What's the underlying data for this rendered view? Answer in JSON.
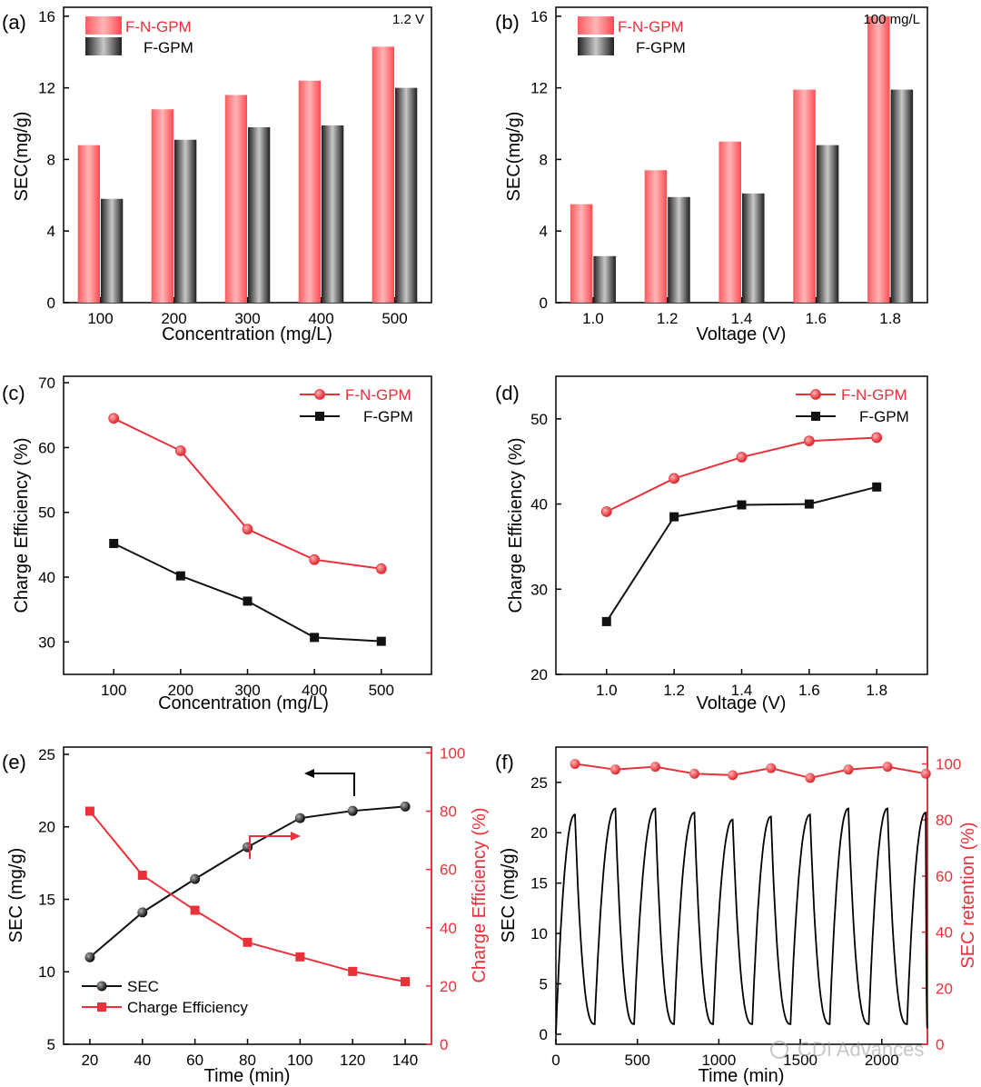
{
  "colors": {
    "red": "#e8313a",
    "red_bar": "#f25a5f",
    "black": "#111111",
    "gray_bar": "#5a5a5a"
  },
  "watermark": "CDI Advances",
  "chart_data": [
    {
      "id": "a",
      "type": "bar",
      "panel_label": "(a)",
      "annotation": "1.2 V",
      "xlabel": "Concentration (mg/L)",
      "ylabel": "SEC(mg/g)",
      "categories": [
        "100",
        "200",
        "300",
        "400",
        "500"
      ],
      "ylim": [
        0,
        16.5
      ],
      "yticks": [
        0,
        4,
        8,
        12,
        16
      ],
      "series": [
        {
          "name": "F-N-GPM",
          "values": [
            8.8,
            10.8,
            11.6,
            12.4,
            14.3
          ]
        },
        {
          "name": "F-GPM",
          "values": [
            5.8,
            9.1,
            9.8,
            9.9,
            12.0
          ]
        }
      ]
    },
    {
      "id": "b",
      "type": "bar",
      "panel_label": "(b)",
      "annotation": "100 mg/L",
      "xlabel": "Voltage (V)",
      "ylabel": "SEC(mg/g)",
      "categories": [
        "1.0",
        "1.2",
        "1.4",
        "1.6",
        "1.8"
      ],
      "ylim": [
        0,
        16.5
      ],
      "yticks": [
        0,
        4,
        8,
        12,
        16
      ],
      "series": [
        {
          "name": "F-N-GPM",
          "values": [
            5.5,
            7.4,
            9.0,
            11.9,
            16.0
          ]
        },
        {
          "name": "F-GPM",
          "values": [
            2.6,
            5.9,
            6.1,
            8.8,
            11.9
          ]
        }
      ]
    },
    {
      "id": "c",
      "type": "line",
      "panel_label": "(c)",
      "xlabel": "Concentration (mg/L)",
      "ylabel": "Charge Efficiency (%)",
      "x": [
        100,
        200,
        300,
        400,
        500
      ],
      "xlim": [
        25,
        575
      ],
      "xticks": [
        100,
        200,
        300,
        400,
        500
      ],
      "ylim": [
        25,
        71
      ],
      "yticks": [
        30,
        40,
        50,
        60,
        70
      ],
      "series": [
        {
          "name": "F-N-GPM",
          "marker": "circle",
          "values": [
            64.5,
            59.5,
            47.4,
            42.7,
            41.3
          ]
        },
        {
          "name": "F-GPM",
          "marker": "square",
          "values": [
            45.2,
            40.2,
            36.3,
            30.7,
            30.1
          ]
        }
      ]
    },
    {
      "id": "d",
      "type": "line",
      "panel_label": "(d)",
      "xlabel": "Voltage (V)",
      "ylabel": "Charge Efficiency (%)",
      "x": [
        1.0,
        1.2,
        1.4,
        1.6,
        1.8
      ],
      "xlim": [
        0.85,
        1.95
      ],
      "xticks": [
        1.0,
        1.2,
        1.4,
        1.6,
        1.8
      ],
      "xtick_labels": [
        "1.0",
        "1.2",
        "1.4",
        "1.6",
        "1.8"
      ],
      "ylim": [
        20,
        55
      ],
      "yticks": [
        20,
        30,
        40,
        50
      ],
      "series": [
        {
          "name": "F-N-GPM",
          "marker": "circle",
          "values": [
            39.1,
            43.0,
            45.5,
            47.4,
            47.8
          ]
        },
        {
          "name": "F-GPM",
          "marker": "square",
          "values": [
            26.2,
            38.5,
            39.9,
            40.0,
            42.0
          ]
        }
      ]
    },
    {
      "id": "e",
      "type": "line",
      "panel_label": "(e)",
      "xlabel": "Time (min)",
      "ylabel": "SEC (mg/g)",
      "y2label": "Charge Efficiency (%)",
      "x": [
        20,
        40,
        60,
        80,
        100,
        120,
        140
      ],
      "xlim": [
        10,
        150
      ],
      "xticks": [
        20,
        40,
        60,
        80,
        100,
        120,
        140
      ],
      "ylim": [
        5,
        25.5
      ],
      "yticks": [
        5,
        10,
        15,
        20,
        25
      ],
      "y2lim": [
        0,
        102
      ],
      "y2ticks": [
        0,
        20,
        40,
        60,
        80,
        100
      ],
      "series": [
        {
          "name": "SEC",
          "marker": "circle",
          "axis": "left",
          "values": [
            11.0,
            14.1,
            16.4,
            18.6,
            20.6,
            21.1,
            21.4
          ]
        },
        {
          "name": "Charge Efficiency",
          "marker": "square",
          "axis": "right",
          "values": [
            80,
            58,
            46,
            35,
            30,
            25,
            21.5
          ]
        }
      ]
    },
    {
      "id": "f",
      "type": "line",
      "panel_label": "(f)",
      "xlabel": "Time (min)",
      "ylabel": "SEC (mg/g)",
      "y2label": "SEC retention (%)",
      "xlim": [
        0,
        2280
      ],
      "xticks": [
        0,
        500,
        1000,
        1500,
        2000
      ],
      "ylim": [
        -1,
        28.5
      ],
      "yticks": [
        0,
        5,
        10,
        15,
        20,
        25
      ],
      "y2lim": [
        0,
        106
      ],
      "y2ticks": [
        0,
        20,
        40,
        60,
        80,
        100
      ],
      "cycles": {
        "peak_times": [
          117,
          365,
          610,
          850,
          1085,
          1320,
          1560,
          1795,
          2035,
          2270
        ],
        "peaks": [
          21.8,
          22.4,
          22.4,
          22.0,
          21.3,
          21.6,
          21.8,
          22.4,
          22.4,
          22.0
        ],
        "valley_times": [
          238,
          480,
          725,
          965,
          1205,
          1440,
          1680,
          1920,
          2155
        ]
      },
      "retention": {
        "x": [
          117,
          365,
          610,
          850,
          1085,
          1320,
          1560,
          1795,
          2035,
          2270
        ],
        "values": [
          100,
          98,
          99,
          96.5,
          96,
          98.5,
          95,
          98,
          99,
          96.5
        ]
      }
    }
  ]
}
